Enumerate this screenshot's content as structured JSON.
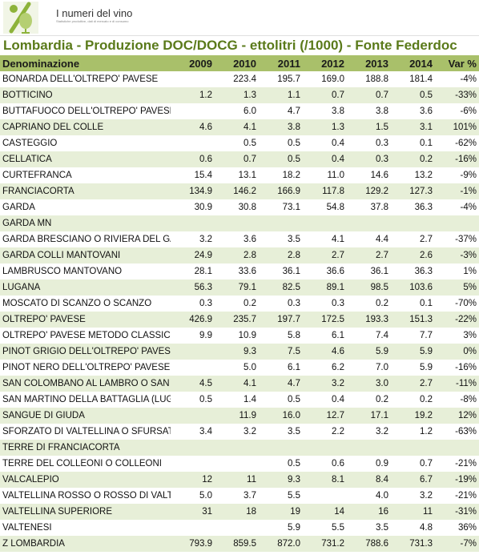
{
  "brand": {
    "name": "I numeri del vino",
    "tagline": "Statistiche produttive, dati di mercato e di consumo"
  },
  "title": "Lombardia - Produzione DOC/DOCG - ettolitri (/1000) - Fonte Federdoc",
  "columns": [
    "Denominazione",
    "2009",
    "2010",
    "2011",
    "2012",
    "2013",
    "2014",
    "Var %"
  ],
  "rows": [
    [
      "BONARDA DELL'OLTREPO' PAVESE",
      "",
      "223.4",
      "195.7",
      "169.0",
      "188.8",
      "181.4",
      "-4%"
    ],
    [
      "BOTTICINO",
      "1.2",
      "1.3",
      "1.1",
      "0.7",
      "0.7",
      "0.5",
      "-33%"
    ],
    [
      "BUTTAFUOCO DELL'OLTREPO' PAVESE",
      "",
      "6.0",
      "4.7",
      "3.8",
      "3.8",
      "3.6",
      "-6%"
    ],
    [
      "CAPRIANO DEL COLLE",
      "4.6",
      "4.1",
      "3.8",
      "1.3",
      "1.5",
      "3.1",
      "101%"
    ],
    [
      "CASTEGGIO",
      "",
      "0.5",
      "0.5",
      "0.4",
      "0.3",
      "0.1",
      "-62%"
    ],
    [
      "CELLATICA",
      "0.6",
      "0.7",
      "0.5",
      "0.4",
      "0.3",
      "0.2",
      "-16%"
    ],
    [
      "CURTEFRANCA",
      "15.4",
      "13.1",
      "18.2",
      "11.0",
      "14.6",
      "13.2",
      "-9%"
    ],
    [
      "FRANCIACORTA",
      "134.9",
      "146.2",
      "166.9",
      "117.8",
      "129.2",
      "127.3",
      "-1%"
    ],
    [
      "GARDA",
      "30.9",
      "30.8",
      "73.1",
      "54.8",
      "37.8",
      "36.3",
      "-4%"
    ],
    [
      "GARDA MN",
      "",
      "",
      "",
      "",
      "",
      "",
      ""
    ],
    [
      "GARDA BRESCIANO O RIVIERA DEL GARDA",
      "3.2",
      "3.6",
      "3.5",
      "4.1",
      "4.4",
      "2.7",
      "-37%"
    ],
    [
      "GARDA COLLI MANTOVANI",
      "24.9",
      "2.8",
      "2.8",
      "2.7",
      "2.7",
      "2.6",
      "-3%"
    ],
    [
      "LAMBRUSCO MANTOVANO",
      "28.1",
      "33.6",
      "36.1",
      "36.6",
      "36.1",
      "36.3",
      "1%"
    ],
    [
      "LUGANA",
      "56.3",
      "79.1",
      "82.5",
      "89.1",
      "98.5",
      "103.6",
      "5%"
    ],
    [
      "MOSCATO DI SCANZO O SCANZO",
      "0.3",
      "0.2",
      "0.3",
      "0.3",
      "0.2",
      "0.1",
      "-70%"
    ],
    [
      "OLTREPO' PAVESE",
      "426.9",
      "235.7",
      "197.7",
      "172.5",
      "193.3",
      "151.3",
      "-22%"
    ],
    [
      "OLTREPO' PAVESE METODO CLASSICO",
      "9.9",
      "10.9",
      "5.8",
      "6.1",
      "7.4",
      "7.7",
      "3%"
    ],
    [
      "PINOT GRIGIO DELL'OLTREPO' PAVESE",
      "",
      "9.3",
      "7.5",
      "4.6",
      "5.9",
      "5.9",
      "0%"
    ],
    [
      "PINOT NERO DELL'OLTREPO' PAVESE",
      "",
      "5.0",
      "6.1",
      "6.2",
      "7.0",
      "5.9",
      "-16%"
    ],
    [
      "SAN COLOMBANO AL LAMBRO O SAN COLOMBANO",
      "4.5",
      "4.1",
      "4.7",
      "3.2",
      "3.0",
      "2.7",
      "-11%"
    ],
    [
      "SAN MARTINO DELLA BATTAGLIA (LUGANA)",
      "0.5",
      "1.4",
      "0.5",
      "0.4",
      "0.2",
      "0.2",
      "-8%"
    ],
    [
      "SANGUE DI GIUDA",
      "",
      "11.9",
      "16.0",
      "12.7",
      "17.1",
      "19.2",
      "12%"
    ],
    [
      "SFORZATO DI VALTELLINA O SFURSAT",
      "3.4",
      "3.2",
      "3.5",
      "2.2",
      "3.2",
      "1.2",
      "-63%"
    ],
    [
      "TERRE DI FRANCIACORTA",
      "",
      "",
      "",
      "",
      "",
      "",
      ""
    ],
    [
      "TERRE DEL COLLEONI O COLLEONI",
      "",
      "",
      "0.5",
      "0.6",
      "0.9",
      "0.7",
      "-21%"
    ],
    [
      "VALCALEPIO",
      "12",
      "11",
      "9.3",
      "8.1",
      "8.4",
      "6.7",
      "-19%"
    ],
    [
      "VALTELLINA ROSSO O ROSSO DI VALTELLINA",
      "5.0",
      "3.7",
      "5.5",
      "",
      "4.0",
      "3.2",
      "-21%"
    ],
    [
      "VALTELLINA SUPERIORE",
      "31",
      "18",
      "19",
      "14",
      "16",
      "11",
      "-31%"
    ],
    [
      "VALTENESI",
      "",
      "",
      "5.9",
      "5.5",
      "3.5",
      "4.8",
      "36%"
    ],
    [
      "Z LOMBARDIA",
      "793.9",
      "859.5",
      "872.0",
      "731.2",
      "788.6",
      "731.3",
      "-7%"
    ]
  ],
  "colors": {
    "header_bg": "#a9c06a",
    "stripe": "#e7efd8",
    "title": "#5a7a1a",
    "logo": "#8db33a"
  },
  "icons": {
    "logo": "glass-percent-logo"
  }
}
